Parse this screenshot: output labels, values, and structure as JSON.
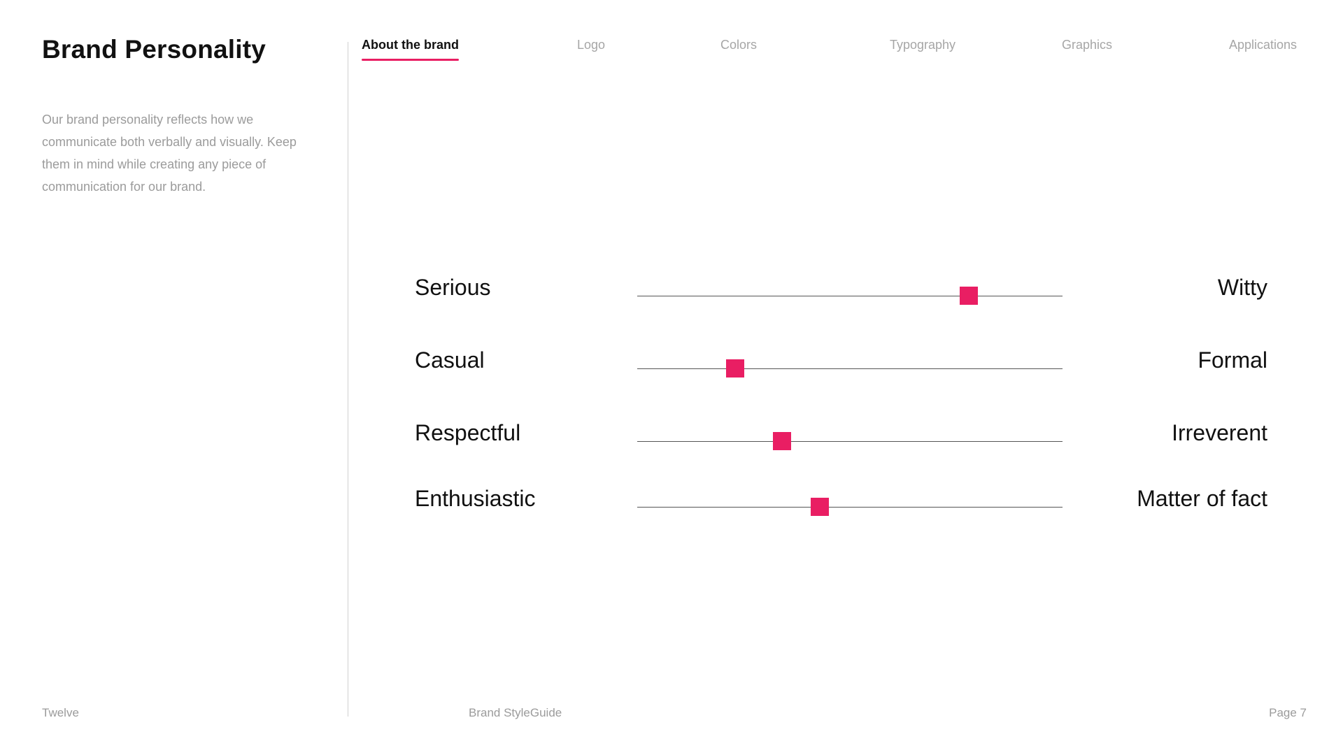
{
  "header": {
    "title": "Brand Personality",
    "description": "Our brand personality reflects how we communicate both verbally and visually. Keep them in mind while creating any piece of communication for our brand."
  },
  "nav": {
    "tabs": [
      {
        "label": "About the brand",
        "active": true
      },
      {
        "label": "Logo",
        "active": false
      },
      {
        "label": "Colors",
        "active": false
      },
      {
        "label": "Typography",
        "active": false
      },
      {
        "label": "Graphics",
        "active": false
      },
      {
        "label": "Applications",
        "active": false
      }
    ]
  },
  "scales": [
    {
      "left": "Serious",
      "right": "Witty",
      "value": 0.78
    },
    {
      "left": "Casual",
      "right": "Formal",
      "value": 0.23
    },
    {
      "left": "Respectful",
      "right": "Irreverent",
      "value": 0.34
    },
    {
      "left": "Enthusiastic",
      "right": "Matter of fact",
      "value": 0.43
    }
  ],
  "footer": {
    "brand": "Twelve",
    "doc": "Brand StyleGuide",
    "page": "Page 7"
  },
  "colors": {
    "accent": "#e91e63",
    "track": "#555555",
    "muted": "#9b9b9b"
  }
}
